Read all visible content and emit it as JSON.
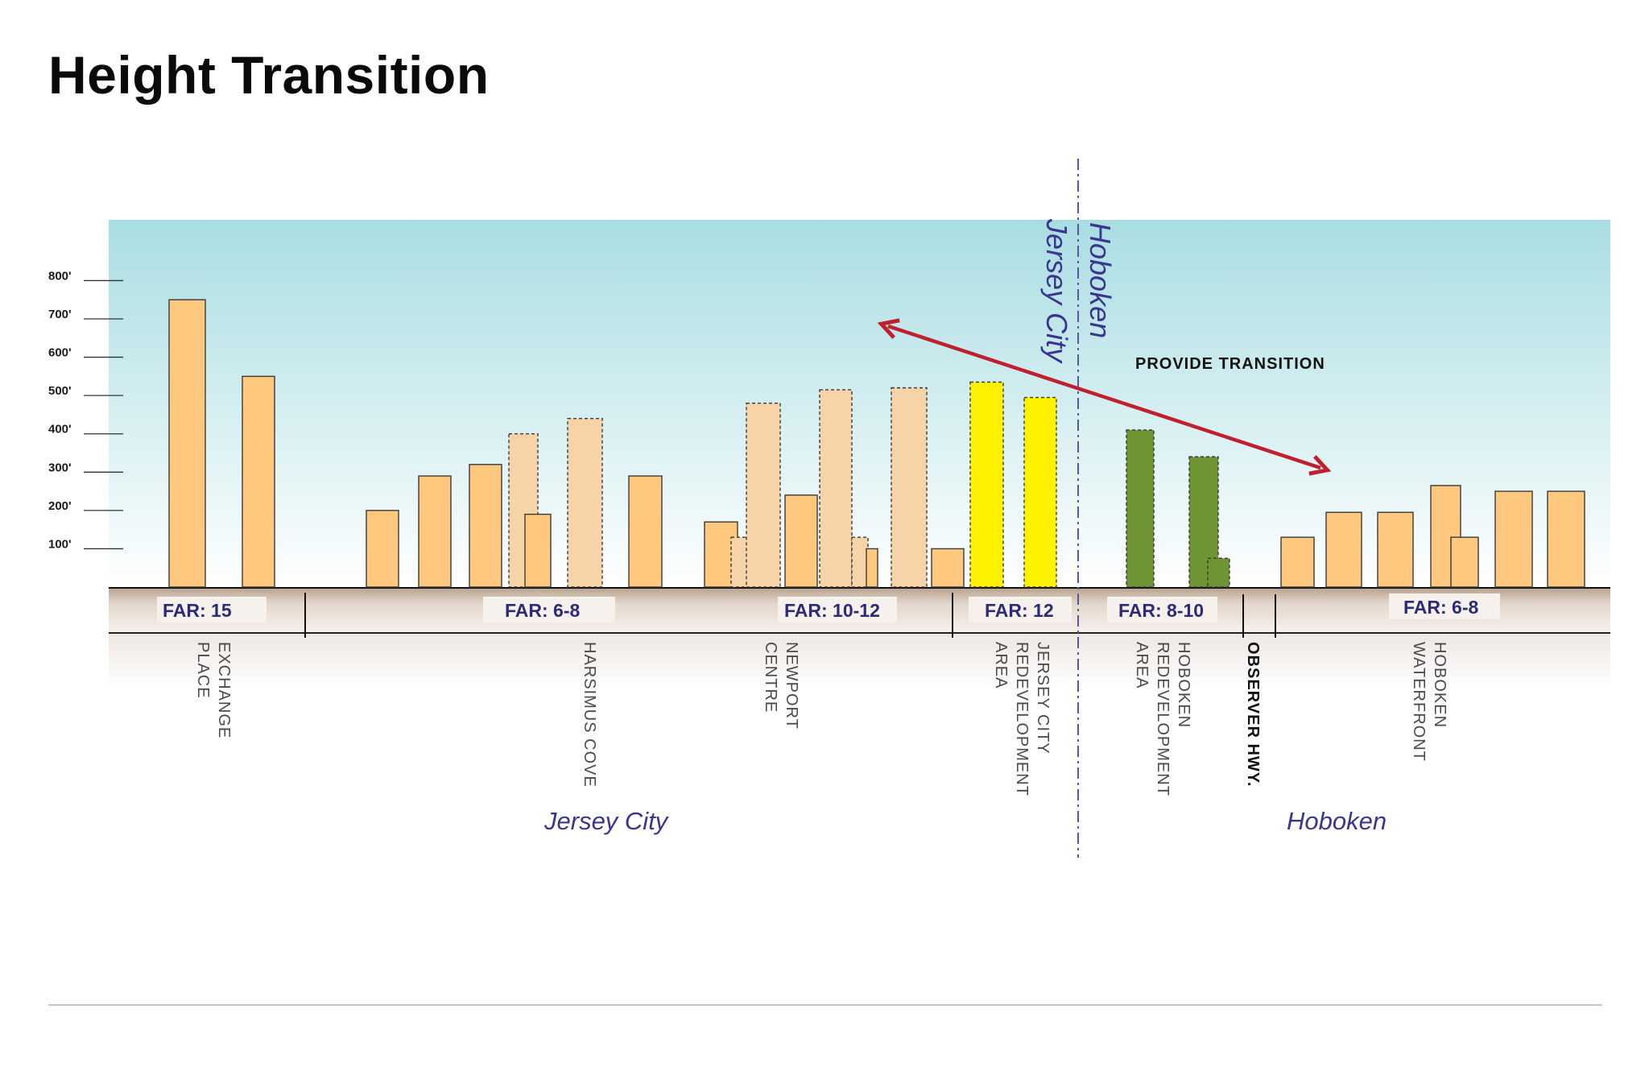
{
  "title": "Height Transition",
  "y_axis": {
    "ticks": [
      {
        "value": 100,
        "label": "100'"
      },
      {
        "value": 200,
        "label": "200'"
      },
      {
        "value": 300,
        "label": "300'"
      },
      {
        "value": 400,
        "label": "400'"
      },
      {
        "value": 500,
        "label": "500'"
      },
      {
        "value": 600,
        "label": "600'"
      },
      {
        "value": 700,
        "label": "700'"
      },
      {
        "value": 800,
        "label": "800'"
      }
    ]
  },
  "colors": {
    "sky_top": "#a8dde2",
    "sky_bottom": "#ffffff",
    "existing": "#fec97f",
    "proposed_pale": "#f7d3a8",
    "jersey_city_redevelopment": "#fff200",
    "hoboken_redevelopment": "#6e9434",
    "arrow": "#c0202e",
    "ground": "#c8b4a2",
    "boundary": "#3a3590"
  },
  "annotation": "PROVIDE TRANSITION",
  "boundary_labels": {
    "left": "Jersey City",
    "right": "Hoboken"
  },
  "far_labels": [
    "FAR: 15",
    "FAR: 6-8",
    "FAR: 10-12",
    "FAR: 12",
    "FAR: 8-10",
    "FAR: 6-8"
  ],
  "areas": [
    {
      "lines": [
        "EXCHANGE",
        "PLACE"
      ],
      "bold": false
    },
    {
      "lines": [
        "HARSIMUS COVE"
      ],
      "bold": false
    },
    {
      "lines": [
        "NEWPORT",
        "CENTRE"
      ],
      "bold": false
    },
    {
      "lines": [
        "JERSEY CITY",
        "REDEVELOPMENT",
        "AREA"
      ],
      "bold": false
    },
    {
      "lines": [
        "HOBOKEN",
        "REDEVELOPMENT",
        "AREA"
      ],
      "bold": false
    },
    {
      "lines": [
        "OBSERVER HWY."
      ],
      "bold": true
    },
    {
      "lines": [
        "HOBOKEN",
        "WATERFRONT"
      ],
      "bold": false
    }
  ],
  "cities": [
    "Jersey City",
    "Hoboken"
  ],
  "buildings": [
    {
      "height": 750,
      "style": "existing"
    },
    {
      "height": 550,
      "style": "existing"
    },
    {
      "height": 200,
      "style": "existing"
    },
    {
      "height": 290,
      "style": "existing"
    },
    {
      "height": 320,
      "style": "existing"
    },
    {
      "height": 400,
      "style": "proposed"
    },
    {
      "height": 190,
      "style": "existing"
    },
    {
      "height": 440,
      "style": "proposed"
    },
    {
      "height": 290,
      "style": "existing"
    },
    {
      "height": 170,
      "style": "existing"
    },
    {
      "height": 130,
      "style": "proposed"
    },
    {
      "height": 480,
      "style": "proposed"
    },
    {
      "height": 240,
      "style": "existing"
    },
    {
      "height": 515,
      "style": "proposed"
    },
    {
      "height": 130,
      "style": "proposed"
    },
    {
      "height": 100,
      "style": "existing"
    },
    {
      "height": 520,
      "style": "proposed"
    },
    {
      "height": 100,
      "style": "existing"
    },
    {
      "height": 535,
      "style": "jc-redev"
    },
    {
      "height": 495,
      "style": "jc-redev"
    },
    {
      "height": 410,
      "style": "hob-redev"
    },
    {
      "height": 340,
      "style": "hob-redev"
    },
    {
      "height": 75,
      "style": "hob-redev"
    },
    {
      "height": 130,
      "style": "existing"
    },
    {
      "height": 195,
      "style": "existing"
    },
    {
      "height": 195,
      "style": "existing"
    },
    {
      "height": 265,
      "style": "existing"
    },
    {
      "height": 130,
      "style": "existing"
    },
    {
      "height": 250,
      "style": "existing"
    },
    {
      "height": 250,
      "style": "existing"
    }
  ]
}
